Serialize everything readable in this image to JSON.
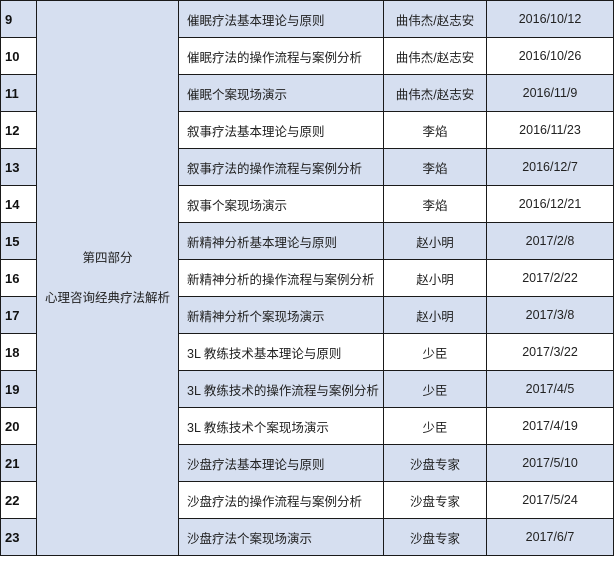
{
  "part": {
    "title": "第四部分",
    "subtitle": "心理咨询经典疗法解析"
  },
  "colors": {
    "shade": "#d6dff0",
    "border": "#1a1a1a"
  },
  "rows": [
    {
      "num": "9",
      "topic": "催眠疗法基本理论与原则",
      "teacher": "曲伟杰/赵志安",
      "date": "2016/10/12"
    },
    {
      "num": "10",
      "topic": "催眠疗法的操作流程与案例分析",
      "teacher": "曲伟杰/赵志安",
      "date": "2016/10/26"
    },
    {
      "num": "11",
      "topic": "催眠个案现场演示",
      "teacher": "曲伟杰/赵志安",
      "date": "2016/11/9"
    },
    {
      "num": "12",
      "topic": "叙事疗法基本理论与原则",
      "teacher": "李焰",
      "date": "2016/11/23"
    },
    {
      "num": "13",
      "topic": "叙事疗法的操作流程与案例分析",
      "teacher": "李焰",
      "date": "2016/12/7"
    },
    {
      "num": "14",
      "topic": "叙事个案现场演示",
      "teacher": "李焰",
      "date": "2016/12/21"
    },
    {
      "num": "15",
      "topic": "新精神分析基本理论与原则",
      "teacher": "赵小明",
      "date": "2017/2/8"
    },
    {
      "num": "16",
      "topic": "新精神分析的操作流程与案例分析",
      "teacher": "赵小明",
      "date": "2017/2/22"
    },
    {
      "num": "17",
      "topic": "新精神分析个案现场演示",
      "teacher": "赵小明",
      "date": "2017/3/8"
    },
    {
      "num": "18",
      "topic": "3L 教练技术基本理论与原则",
      "teacher": "少臣",
      "date": "2017/3/22"
    },
    {
      "num": "19",
      "topic": "3L 教练技术的操作流程与案例分析",
      "teacher": "少臣",
      "date": "2017/4/5"
    },
    {
      "num": "20",
      "topic": "3L 教练技术个案现场演示",
      "teacher": "少臣",
      "date": "2017/4/19"
    },
    {
      "num": "21",
      "topic": "沙盘疗法基本理论与原则",
      "teacher": "沙盘专家",
      "date": "2017/5/10"
    },
    {
      "num": "22",
      "topic": "沙盘疗法的操作流程与案例分析",
      "teacher": "沙盘专家",
      "date": "2017/5/24"
    },
    {
      "num": "23",
      "topic": "沙盘疗法个案现场演示",
      "teacher": "沙盘专家",
      "date": "2017/6/7"
    }
  ]
}
